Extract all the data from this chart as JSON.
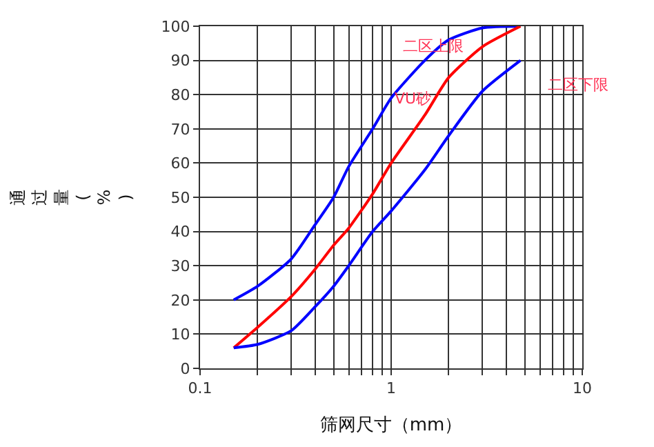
{
  "chart_data": {
    "type": "line",
    "xlabel": "筛网尺寸（mm）",
    "ylabel": "通过量(%)",
    "log": "x",
    "xlim": [
      0.1,
      10
    ],
    "ylim": [
      0,
      100
    ],
    "xticks": [
      0.1,
      {
        "value": 0.2,
        "label": null
      },
      {
        "value": 0.3,
        "label": null
      },
      {
        "value": 0.4,
        "label": null
      },
      {
        "value": 0.5,
        "label": null
      },
      {
        "value": 0.6,
        "label": null
      },
      {
        "value": 0.7,
        "label": null
      },
      {
        "value": 0.8,
        "label": null
      },
      {
        "value": 0.9,
        "label": null
      },
      1,
      {
        "value": 2,
        "label": null
      },
      {
        "value": 3,
        "label": null
      },
      {
        "value": 4,
        "label": null
      },
      {
        "value": 5,
        "label": null
      },
      {
        "value": 6,
        "label": null
      },
      {
        "value": 7,
        "label": null
      },
      {
        "value": 8,
        "label": null
      },
      {
        "value": 9,
        "label": null
      },
      10
    ],
    "yticks": [
      0,
      10,
      20,
      30,
      40,
      50,
      60,
      70,
      80,
      90,
      100
    ],
    "grid": true,
    "legend": false,
    "marker": "none",
    "line_style": "solid",
    "series": [
      {
        "name": "二区上限",
        "color": "#0000ff",
        "x": [
          0.15,
          0.2,
          0.3,
          0.4,
          0.5,
          0.6,
          0.8,
          1,
          1.5,
          2,
          3,
          4.75
        ],
        "values": [
          20,
          24,
          32,
          42,
          50,
          59,
          70,
          79,
          90,
          96,
          99.5,
          100
        ]
      },
      {
        "name": "VU砂",
        "color": "#ff0000",
        "x": [
          0.15,
          0.2,
          0.3,
          0.4,
          0.5,
          0.6,
          0.8,
          1,
          1.5,
          2,
          3,
          4.75
        ],
        "values": [
          6,
          12,
          21,
          29,
          36,
          41,
          51,
          60,
          74,
          85,
          94,
          100
        ]
      },
      {
        "name": "二区下限",
        "color": "#0000ff",
        "x": [
          0.15,
          0.2,
          0.3,
          0.4,
          0.5,
          0.6,
          0.8,
          1,
          1.5,
          2,
          3,
          4.75
        ],
        "values": [
          6,
          7,
          11,
          18,
          24,
          30,
          40,
          46,
          58,
          68,
          81,
          90
        ]
      }
    ]
  }
}
